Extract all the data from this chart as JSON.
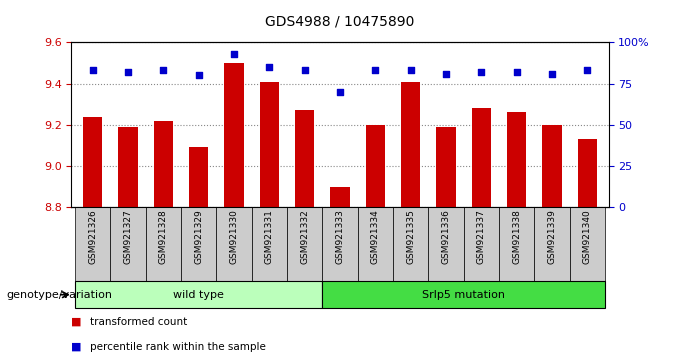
{
  "title": "GDS4988 / 10475890",
  "samples": [
    "GSM921326",
    "GSM921327",
    "GSM921328",
    "GSM921329",
    "GSM921330",
    "GSM921331",
    "GSM921332",
    "GSM921333",
    "GSM921334",
    "GSM921335",
    "GSM921336",
    "GSM921337",
    "GSM921338",
    "GSM921339",
    "GSM921340"
  ],
  "transformed_counts": [
    9.24,
    9.19,
    9.22,
    9.09,
    9.5,
    9.41,
    9.27,
    8.9,
    9.2,
    9.41,
    9.19,
    9.28,
    9.26,
    9.2,
    9.13
  ],
  "percentile_ranks": [
    83,
    82,
    83,
    80,
    93,
    85,
    83,
    70,
    83,
    83,
    81,
    82,
    82,
    81,
    83
  ],
  "bar_color": "#cc0000",
  "dot_color": "#0000cc",
  "ylim_left": [
    8.8,
    9.6
  ],
  "ylim_right": [
    0,
    100
  ],
  "yticks_left": [
    8.8,
    9.0,
    9.2,
    9.4,
    9.6
  ],
  "yticks_right": [
    0,
    25,
    50,
    75,
    100
  ],
  "grid_color": "#888888",
  "groups": [
    {
      "label": "wild type",
      "start": 0,
      "end": 7,
      "color": "#bbffbb"
    },
    {
      "label": "Srlp5 mutation",
      "start": 7,
      "end": 15,
      "color": "#44dd44"
    }
  ],
  "genotype_label": "genotype/variation",
  "legend_tc": "transformed count",
  "legend_pr": "percentile rank within the sample",
  "bg_color": "#ffffff",
  "tick_bg_color": "#cccccc",
  "fig_bg": "#ffffff"
}
